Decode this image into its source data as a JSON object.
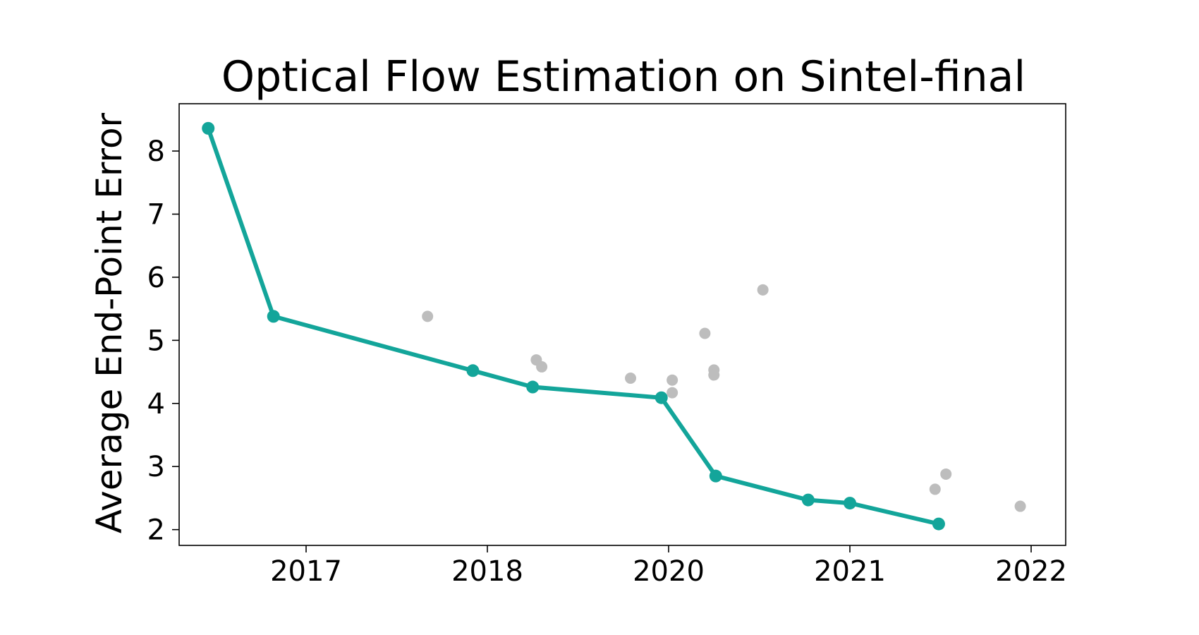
{
  "chart_data": {
    "type": "scatter",
    "title": "Optical Flow Estimation on Sintel-final",
    "xlabel": "",
    "ylabel": "Average End-Point Error",
    "ylim": [
      1.75,
      8.75
    ],
    "yticks": [
      2,
      3,
      4,
      5,
      6,
      7,
      8
    ],
    "xticks": [
      {
        "label": "2017",
        "x": 2017.0
      },
      {
        "label": "2018",
        "x": 2018.0
      },
      {
        "label": "2020",
        "x": 2019.0
      },
      {
        "label": "2021",
        "x": 2020.0
      },
      {
        "label": "2022",
        "x": 2021.0
      }
    ],
    "grid": false,
    "colors": {
      "sota": "#13a59a",
      "other": "#bdbdbd"
    },
    "series": [
      {
        "role": "sota",
        "x": [
          2016.46,
          2016.82,
          2017.92,
          2018.25,
          2018.96,
          2019.26,
          2019.77,
          2020.0,
          2020.49
        ],
        "y": [
          8.36,
          5.38,
          4.52,
          4.26,
          4.09,
          2.85,
          2.47,
          2.42,
          2.09
        ]
      },
      {
        "role": "other",
        "x": [
          2017.67,
          2018.27,
          2018.3,
          2018.79,
          2019.02,
          2019.02,
          2019.2,
          2019.25,
          2019.25,
          2019.52,
          2020.47,
          2020.53,
          2020.94
        ],
        "y": [
          5.38,
          4.69,
          4.58,
          4.4,
          4.37,
          4.17,
          5.11,
          4.53,
          4.45,
          5.8,
          2.64,
          2.88,
          2.37
        ]
      }
    ]
  }
}
